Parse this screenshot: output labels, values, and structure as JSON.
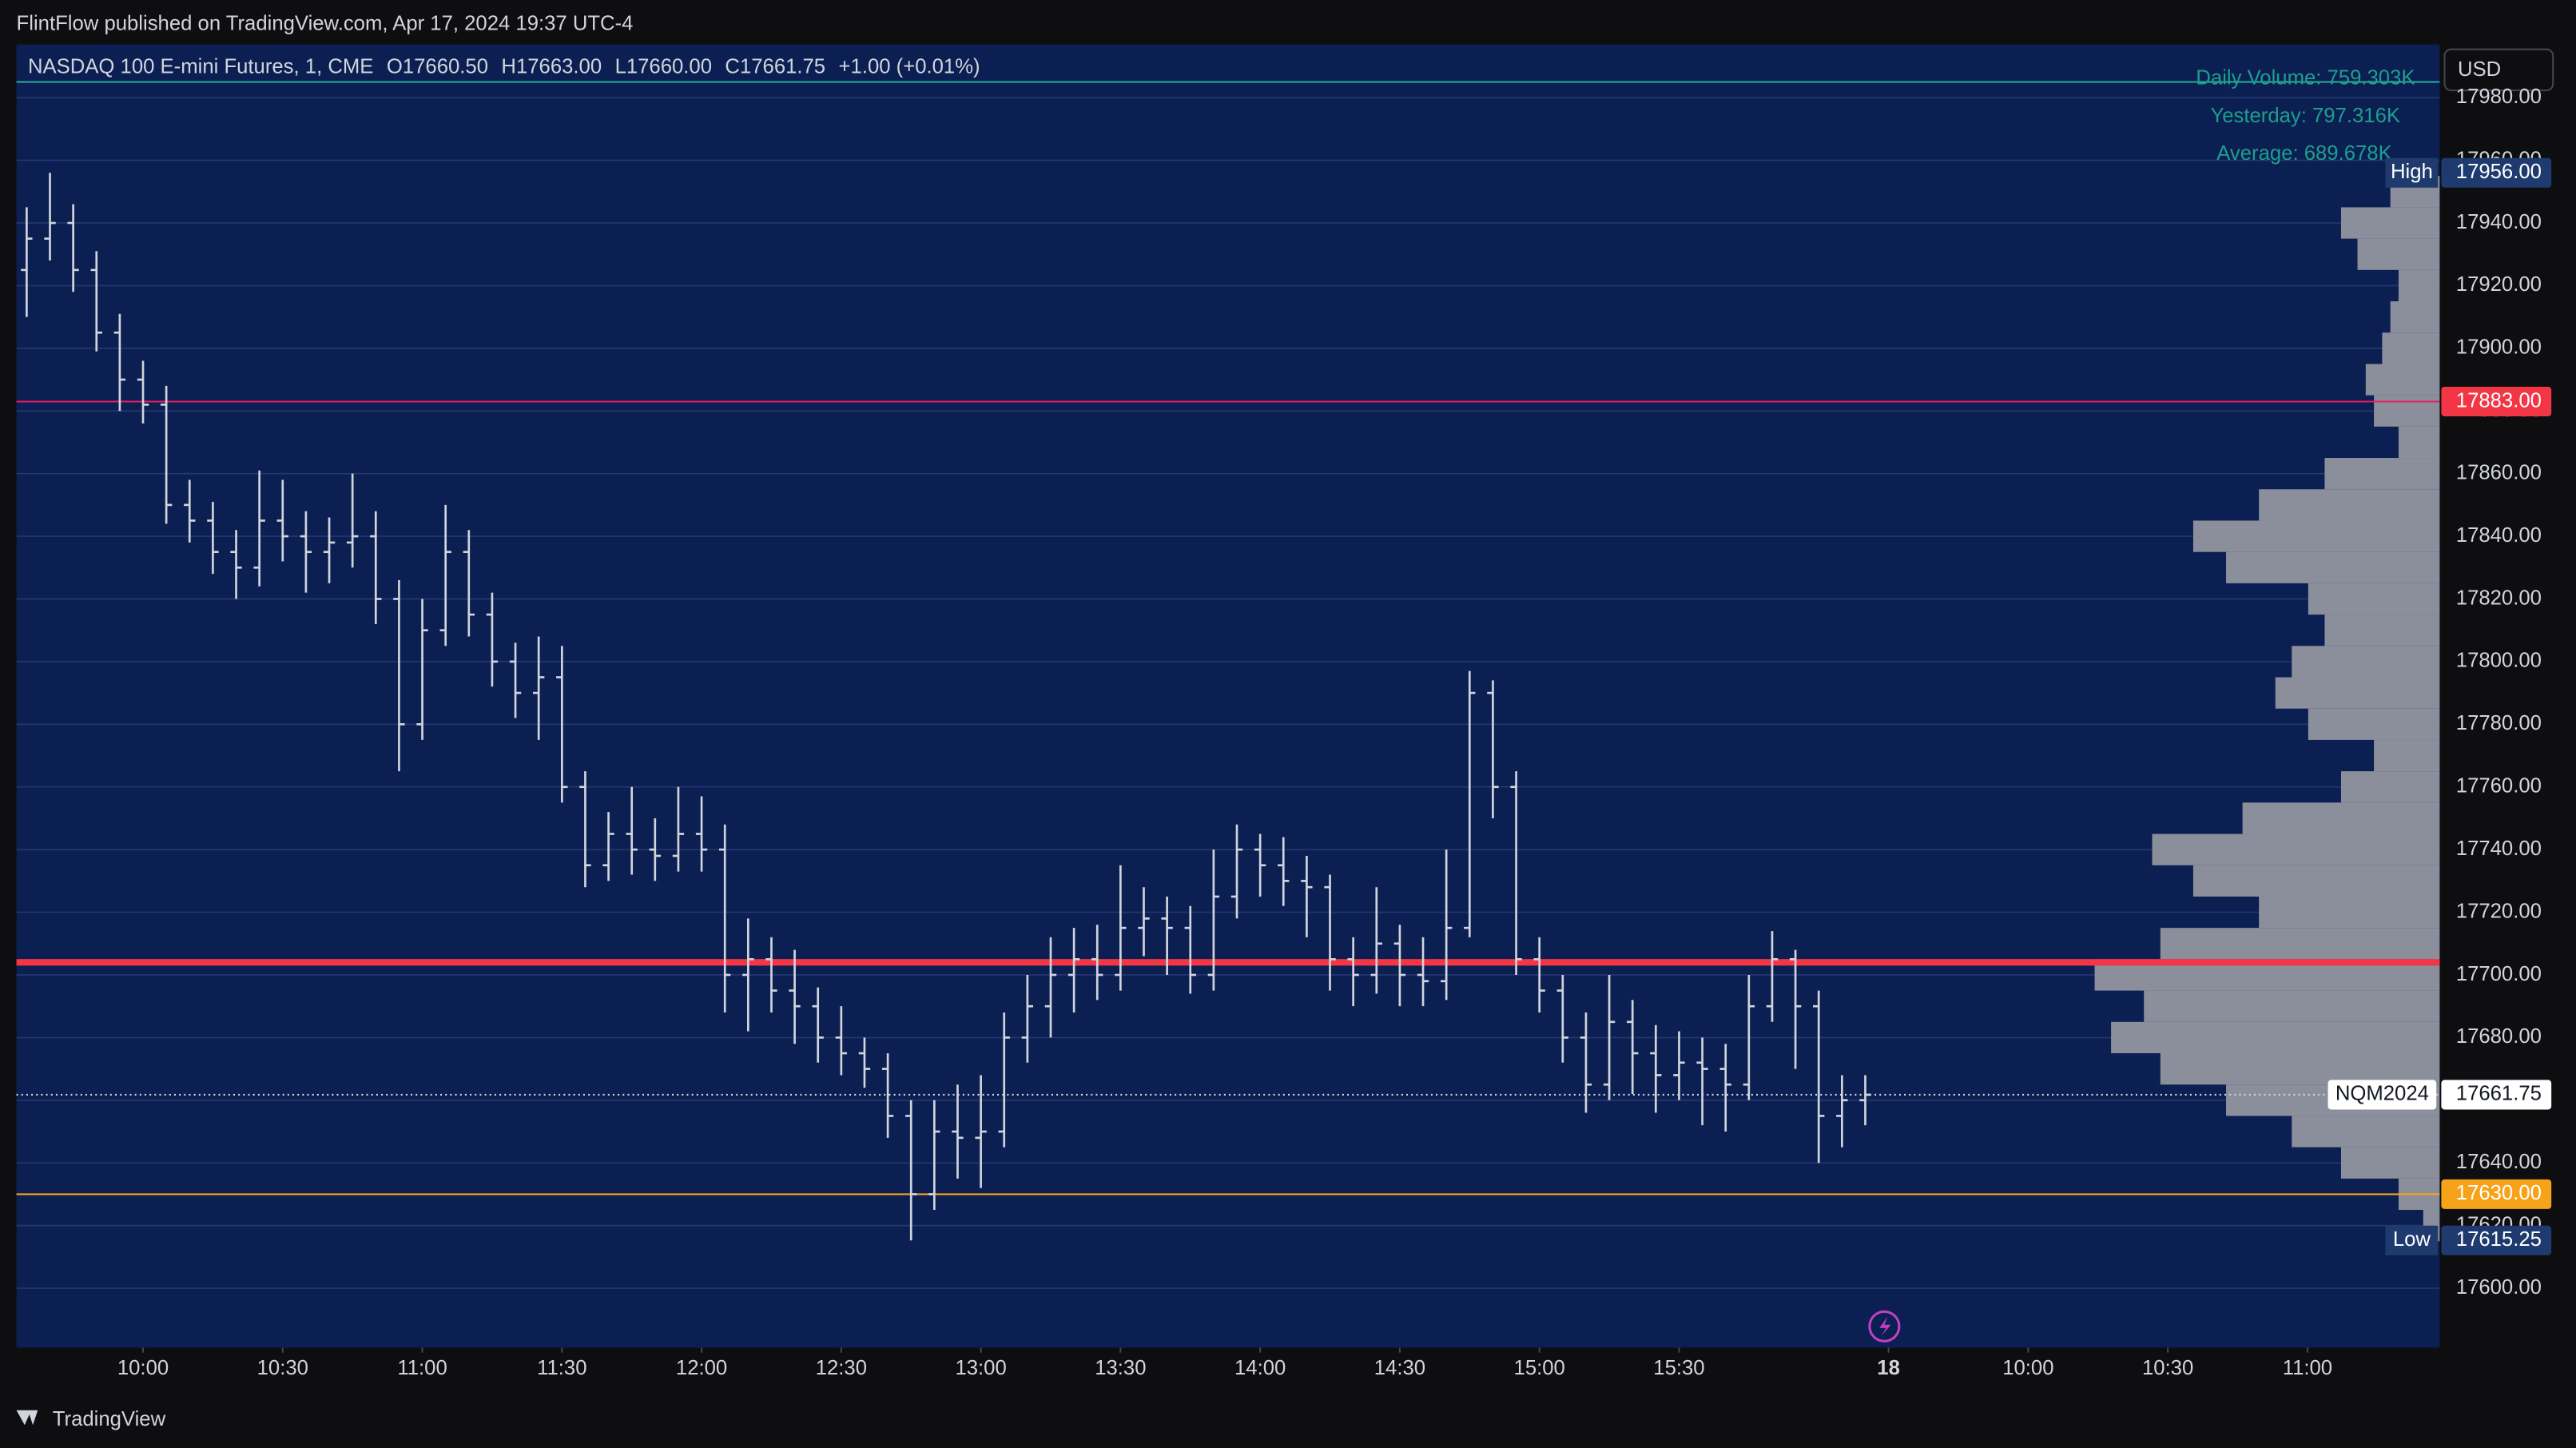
{
  "header": {
    "published": "FlintFlow published on TradingView.com, Apr 17, 2024 19:37 UTC-4",
    "footer": "TradingView"
  },
  "chart_data": {
    "type": "ohlc",
    "legend": {
      "symbol": "NASDAQ 100 E-mini Futures, 1, CME",
      "open": "O17660.50",
      "high": "H17663.00",
      "low": "L17660.00",
      "close": "C17661.75",
      "change": "+1.00 (+0.01%)"
    },
    "volume_info": [
      "Daily Volume: 759.303K",
      "Yesterday: 797.316K",
      "Average: 689.678K"
    ],
    "currency": "USD",
    "color": "#d1d4dc",
    "grid": true,
    "xlim": [
      2.8,
      523.4
    ],
    "ylim": [
      17581,
      17997
    ],
    "xticks": [
      {
        "value": 30,
        "label": "10:00"
      },
      {
        "value": 60,
        "label": "10:30"
      },
      {
        "value": 90,
        "label": "11:00"
      },
      {
        "value": 120,
        "label": "11:30"
      },
      {
        "value": 150,
        "label": "12:00"
      },
      {
        "value": 180,
        "label": "12:30"
      },
      {
        "value": 210,
        "label": "13:00"
      },
      {
        "value": 240,
        "label": "13:30"
      },
      {
        "value": 270,
        "label": "14:00"
      },
      {
        "value": 300,
        "label": "14:30"
      },
      {
        "value": 330,
        "label": "15:00"
      },
      {
        "value": 360,
        "label": "15:30"
      },
      {
        "value": 405,
        "label": "18"
      },
      {
        "value": 435,
        "label": "10:00"
      },
      {
        "value": 465,
        "label": "10:30"
      },
      {
        "value": 495,
        "label": "11:00"
      }
    ],
    "yticks": [
      {
        "value": 17600,
        "label": "17600.00"
      },
      {
        "value": 17620,
        "label": "17620.00"
      },
      {
        "value": 17640,
        "label": "17640.00"
      },
      {
        "value": 17660,
        "label": "17660.00"
      },
      {
        "value": 17680,
        "label": "17680.00"
      },
      {
        "value": 17700,
        "label": "17700.00"
      },
      {
        "value": 17720,
        "label": "17720.00"
      },
      {
        "value": 17740,
        "label": "17740.00"
      },
      {
        "value": 17760,
        "label": "17760.00"
      },
      {
        "value": 17780,
        "label": "17780.00"
      },
      {
        "value": 17800,
        "label": "17800.00"
      },
      {
        "value": 17820,
        "label": "17820.00"
      },
      {
        "value": 17840,
        "label": "17840.00"
      },
      {
        "value": 17860,
        "label": "17860.00"
      },
      {
        "value": 17880,
        "label": "17880.00"
      },
      {
        "value": 17900,
        "label": "17900.00"
      },
      {
        "value": 17920,
        "label": "17920.00"
      },
      {
        "value": 17940,
        "label": "17940.00"
      },
      {
        "value": 17960,
        "label": "17960.00"
      },
      {
        "value": 17980,
        "label": "17980.00"
      }
    ],
    "x": [
      5,
      10,
      15,
      20,
      25,
      30,
      35,
      40,
      45,
      50,
      55,
      60,
      65,
      70,
      75,
      80,
      85,
      90,
      95,
      100,
      105,
      110,
      115,
      120,
      125,
      130,
      135,
      140,
      145,
      150,
      155,
      160,
      165,
      170,
      175,
      180,
      185,
      190,
      195,
      200,
      205,
      210,
      215,
      220,
      225,
      230,
      235,
      240,
      245,
      250,
      255,
      260,
      265,
      270,
      275,
      280,
      285,
      290,
      295,
      300,
      305,
      310,
      315,
      320,
      325,
      330,
      335,
      340,
      345,
      350,
      355,
      360,
      365,
      370,
      375,
      380,
      385,
      390,
      395,
      400
    ],
    "open": [
      17925,
      17935,
      17940,
      17925,
      17905,
      17890,
      17882,
      17850,
      17845,
      17835,
      17830,
      17845,
      17840,
      17835,
      17838,
      17840,
      17820,
      17780,
      17810,
      17835,
      17815,
      17800,
      17790,
      17795,
      17760,
      17735,
      17745,
      17740,
      17738,
      17745,
      17740,
      17700,
      17705,
      17695,
      17690,
      17680,
      17675,
      17670,
      17655,
      17630,
      17650,
      17648,
      17650,
      17680,
      17690,
      17700,
      17705,
      17700,
      17715,
      17718,
      17715,
      17700,
      17725,
      17740,
      17735,
      17730,
      17728,
      17705,
      17700,
      17710,
      17700,
      17698,
      17715,
      17790,
      17760,
      17705,
      17695,
      17680,
      17665,
      17685,
      17675,
      17668,
      17672,
      17670,
      17665,
      17690,
      17705,
      17690,
      17655,
      17660
    ],
    "high": [
      17945,
      17956,
      17946,
      17931,
      17911,
      17896,
      17888,
      17858,
      17851,
      17842,
      17861,
      17858,
      17848,
      17846,
      17860,
      17848,
      17826,
      17820,
      17850,
      17842,
      17822,
      17806,
      17808,
      17805,
      17765,
      17752,
      17760,
      17750,
      17760,
      17757,
      17748,
      17718,
      17712,
      17708,
      17696,
      17690,
      17680,
      17675,
      17660,
      17660,
      17665,
      17668,
      17688,
      17700,
      17712,
      17715,
      17716,
      17735,
      17728,
      17725,
      17722,
      17740,
      17748,
      17745,
      17744,
      17738,
      17732,
      17712,
      17728,
      17716,
      17712,
      17740,
      17797,
      17794,
      17765,
      17712,
      17700,
      17688,
      17700,
      17692,
      17684,
      17682,
      17680,
      17678,
      17700,
      17714,
      17708,
      17695,
      17668,
      17668
    ],
    "low": [
      17910,
      17928,
      17918,
      17899,
      17880,
      17876,
      17844,
      17838,
      17828,
      17820,
      17824,
      17832,
      17822,
      17825,
      17830,
      17812,
      17765,
      17775,
      17805,
      17808,
      17792,
      17782,
      17775,
      17755,
      17728,
      17730,
      17732,
      17730,
      17733,
      17733,
      17688,
      17682,
      17688,
      17678,
      17672,
      17668,
      17664,
      17648,
      17615.25,
      17625,
      17635,
      17632,
      17645,
      17672,
      17680,
      17688,
      17692,
      17695,
      17706,
      17700,
      17694,
      17695,
      17718,
      17725,
      17722,
      17712,
      17695,
      17690,
      17694,
      17690,
      17690,
      17692,
      17712,
      17750,
      17700,
      17688,
      17672,
      17656,
      17660,
      17662,
      17656,
      17660,
      17652,
      17650,
      17660,
      17685,
      17670,
      17640,
      17645,
      17652
    ],
    "close": [
      17935,
      17940,
      17925,
      17905,
      17890,
      17882,
      17850,
      17845,
      17835,
      17830,
      17845,
      17840,
      17835,
      17838,
      17840,
      17820,
      17780,
      17810,
      17835,
      17815,
      17800,
      17790,
      17795,
      17760,
      17735,
      17745,
      17740,
      17738,
      17745,
      17740,
      17700,
      17705,
      17695,
      17690,
      17680,
      17675,
      17670,
      17655,
      17630,
      17650,
      17648,
      17650,
      17680,
      17690,
      17700,
      17705,
      17700,
      17715,
      17718,
      17715,
      17700,
      17725,
      17740,
      17735,
      17730,
      17728,
      17705,
      17700,
      17710,
      17700,
      17698,
      17715,
      17790,
      17760,
      17705,
      17695,
      17680,
      17665,
      17685,
      17675,
      17668,
      17672,
      17670,
      17665,
      17690,
      17705,
      17690,
      17655,
      17660,
      17661.75
    ],
    "volume_profile": {
      "color": "#8b8f9c",
      "bins": [
        17615,
        17625,
        17635,
        17645,
        17655,
        17665,
        17675,
        17685,
        17695,
        17705,
        17715,
        17725,
        17735,
        17745,
        17755,
        17765,
        17775,
        17785,
        17795,
        17805,
        17815,
        17825,
        17835,
        17845,
        17855,
        17865,
        17875,
        17885,
        17895,
        17905,
        17915,
        17925,
        17935,
        17945,
        17955
      ],
      "values": [
        10,
        25,
        60,
        90,
        130,
        170,
        200,
        180,
        210,
        170,
        110,
        150,
        175,
        120,
        60,
        40,
        80,
        100,
        90,
        70,
        80,
        130,
        150,
        110,
        70,
        25,
        40,
        45,
        35,
        30,
        25,
        50,
        60,
        30
      ]
    },
    "price_lines": [
      {
        "value": 17985,
        "color": "#26a69a"
      },
      {
        "value": 17883,
        "color": "#e91e63",
        "label": "17883.00",
        "tag_color": "#f23645"
      },
      {
        "value": 17704,
        "color": "#f23645"
      },
      {
        "value": 17661.75,
        "color": "#d1d4dc",
        "label": "17661.75",
        "tag_color": "#ffffff",
        "name": "NQM2024"
      },
      {
        "value": 17630,
        "color": "#f7a21b",
        "label": "17630.00",
        "tag_color": "#f7a21b"
      }
    ],
    "extremes": [
      {
        "name": "High",
        "value": 17956,
        "label": "17956.00"
      },
      {
        "name": "Low",
        "value": 17615.25,
        "label": "17615.25"
      }
    ]
  }
}
